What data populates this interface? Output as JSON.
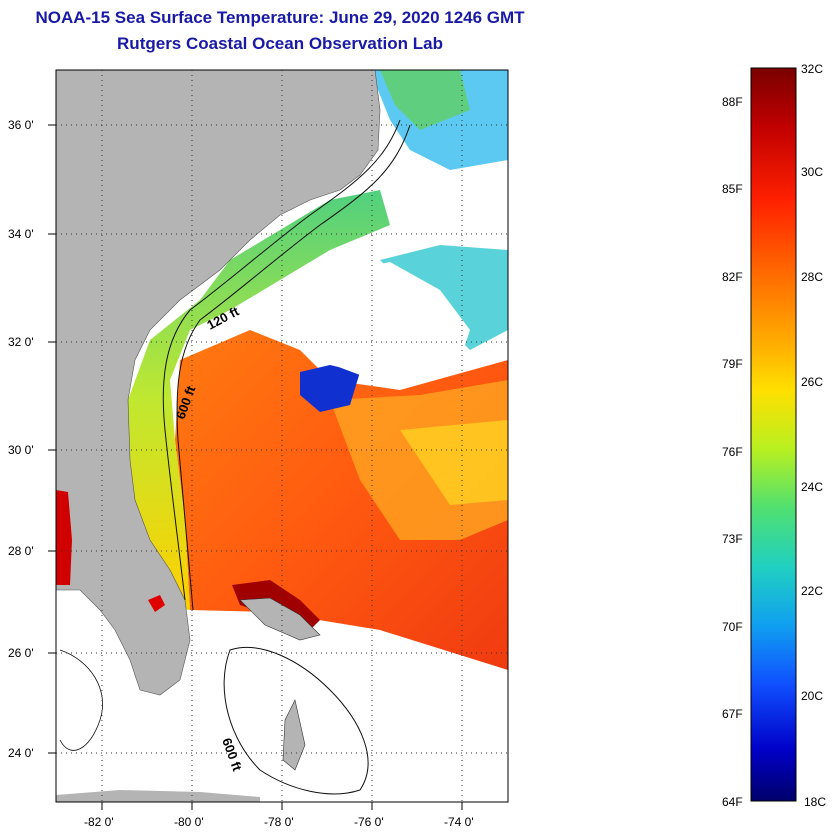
{
  "title": "NOAA-15 Sea Surface Temperature:  June 29, 2020 1246 GMT",
  "subtitle": "Rutgers Coastal Ocean Observation Lab",
  "map": {
    "lat_ticks": [
      "36 0'",
      "34 0'",
      "32 0'",
      "30 0'",
      "28 0'",
      "26 0'",
      "24 0'"
    ],
    "lon_ticks": [
      "-82 0'",
      "-80 0'",
      "-78 0'",
      "-76 0'",
      "-74 0'"
    ],
    "contour_labels": [
      "120 ft",
      "600 ft",
      "600 ft"
    ]
  },
  "colorbar": {
    "celsius": [
      "32C",
      "30C",
      "28C",
      "26C",
      "24C",
      "22C",
      "20C",
      "18C"
    ],
    "fahrenheit": [
      "88F",
      "85F",
      "82F",
      "79F",
      "76F",
      "73F",
      "70F",
      "67F",
      "64F"
    ],
    "colors": [
      "#7a0000",
      "#d40000",
      "#ff3a00",
      "#ff8a00",
      "#ffd000",
      "#d8f000",
      "#70e060",
      "#20d0c0",
      "#10a0f0",
      "#1040ff",
      "#0000c0",
      "#00006a"
    ]
  },
  "colors": {
    "land": "#b4b4b4",
    "title": "#1a1aa6"
  }
}
